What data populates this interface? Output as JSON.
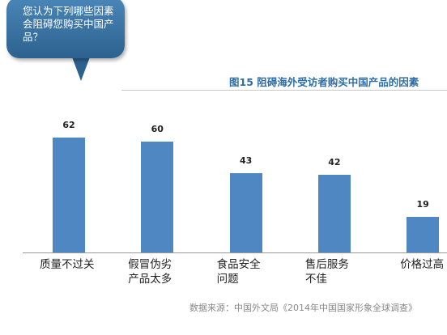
{
  "question": "您认为下列哪些因素会阻碍您购买中国产品？",
  "chart_data": {
    "type": "bar",
    "title": "图15  阻碍海外受访者购买中国产品的因素",
    "categories": [
      "质量不过关",
      "假冒伪劣产品太多",
      "食品安全问题",
      "售后服务不佳",
      "价格过高"
    ],
    "values": [
      62,
      60,
      43,
      42,
      19
    ],
    "color": "#4f87c2",
    "source": "数据来源：中国外文局《2014年中国国家形象全球调查》"
  }
}
